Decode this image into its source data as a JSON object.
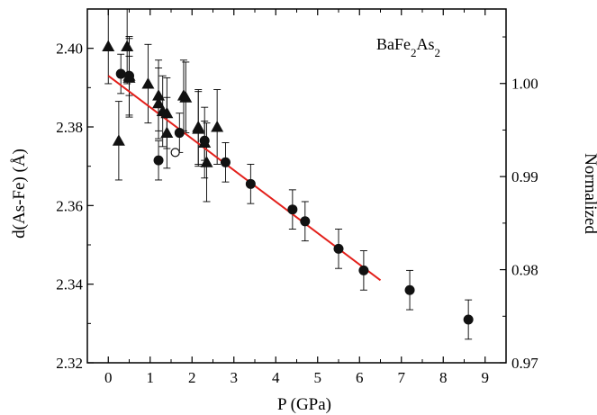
{
  "chart_data": {
    "type": "scatter",
    "title": "",
    "annotation": {
      "main": "BaFe",
      "sub1": "2",
      "mid": "As",
      "sub2": "2"
    },
    "xlabel": "P (GPa)",
    "ylabel": "d(As-Fe) (Å)",
    "y2label": "Normalized",
    "xlim": [
      -0.5,
      9.5
    ],
    "ylim": [
      2.32,
      2.41
    ],
    "y2lim": [
      0.97,
      1.008
    ],
    "xticks": [
      "0",
      "1",
      "2",
      "3",
      "4",
      "5",
      "6",
      "7",
      "8",
      "9"
    ],
    "yticks": [
      "2.32",
      "2.34",
      "2.36",
      "2.38",
      "2.40"
    ],
    "y2ticks": [
      "0.97",
      "0.98",
      "0.99",
      "1.00"
    ],
    "grid": false,
    "colors": {
      "fit_line": "#e3201b",
      "markers": "#111111"
    },
    "series": [
      {
        "marker": "triangle",
        "x": [
          0.0,
          0.25,
          0.45,
          0.5,
          0.5,
          0.95,
          1.2,
          1.2,
          1.3,
          1.4,
          1.4,
          1.8,
          1.85,
          2.15,
          2.15,
          2.3,
          2.35,
          2.6
        ],
        "y": [
          2.4005,
          2.3765,
          2.4005,
          2.393,
          2.3925,
          2.391,
          2.388,
          2.386,
          2.384,
          2.3835,
          2.3785,
          2.388,
          2.3875,
          2.38,
          2.3795,
          2.376,
          2.371,
          2.38
        ],
        "err": [
          0.0095,
          0.01,
          0.0095,
          0.01,
          0.01,
          0.01,
          0.009,
          0.009,
          0.009,
          0.009,
          0.009,
          0.009,
          0.009,
          0.0095,
          0.0095,
          0.009,
          0.01,
          0.0095
        ]
      },
      {
        "marker": "circle-filled",
        "x": [
          0.3,
          0.5,
          1.2,
          1.7,
          2.3,
          2.8,
          3.4,
          4.4,
          4.7,
          5.5,
          6.1,
          7.2,
          8.6
        ],
        "y": [
          2.3935,
          2.393,
          2.3715,
          2.3785,
          2.3765,
          2.371,
          2.3655,
          2.359,
          2.356,
          2.349,
          2.3435,
          2.3385,
          2.331
        ],
        "err": [
          0.005,
          0.005,
          0.005,
          0.005,
          0.005,
          0.005,
          0.005,
          0.005,
          0.005,
          0.005,
          0.005,
          0.005,
          0.005
        ]
      },
      {
        "marker": "circle-open",
        "x": [
          1.6
        ],
        "y": [
          2.3735
        ],
        "err": [
          0
        ]
      }
    ],
    "fit_line": {
      "x": [
        0.0,
        6.5
      ],
      "y": [
        2.393,
        2.341
      ]
    }
  }
}
